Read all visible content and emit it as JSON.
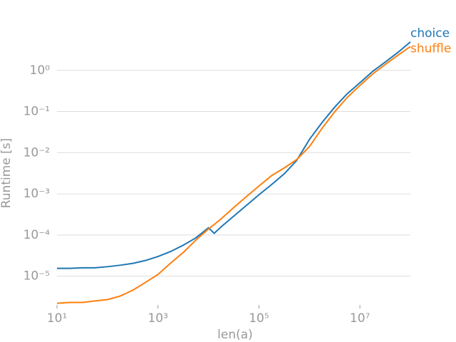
{
  "chart_data": {
    "type": "line",
    "xlabel": "len(a)",
    "ylabel": "Runtime [s]",
    "xscale": "log",
    "yscale": "log",
    "grid": true,
    "x": [
      10,
      18,
      32,
      56,
      100,
      180,
      320,
      560,
      1000,
      1800,
      3200,
      5600,
      10000,
      13000,
      18000,
      32000,
      56000,
      100000,
      180000,
      320000,
      560000,
      1000000,
      1800000,
      3200000,
      5600000,
      10000000,
      18000000,
      32000000,
      56000000,
      100000000
    ],
    "series": [
      {
        "name": "choice",
        "color": "#1f77b4",
        "values": [
          1.55e-05,
          1.55e-05,
          1.6e-05,
          1.6e-05,
          1.7e-05,
          1.85e-05,
          2.05e-05,
          2.4e-05,
          3e-05,
          4e-05,
          5.7e-05,
          8.5e-05,
          0.00015,
          0.00011,
          0.00016,
          0.00029,
          0.00052,
          0.00095,
          0.0017,
          0.0031,
          0.0065,
          0.021,
          0.055,
          0.13,
          0.27,
          0.5,
          0.95,
          1.6,
          2.7,
          4.9
        ]
      },
      {
        "name": "shuffle",
        "color": "#ff7f0e",
        "values": [
          2.2e-06,
          2.3e-06,
          2.3e-06,
          2.5e-06,
          2.7e-06,
          3.3e-06,
          4.6e-06,
          7e-06,
          1.1e-05,
          2.1e-05,
          3.8e-05,
          7.5e-05,
          0.00014,
          0.00018,
          0.00025,
          0.00047,
          0.00085,
          0.00155,
          0.0028,
          0.0043,
          0.0068,
          0.014,
          0.04,
          0.1,
          0.22,
          0.43,
          0.82,
          1.4,
          2.3,
          3.8
        ]
      }
    ],
    "xlim": [
      10,
      100000000
    ],
    "ylim": [
      2e-06,
      10
    ],
    "xticks": [
      {
        "value": 10,
        "label": "10¹"
      },
      {
        "value": 1000,
        "label": "10³"
      },
      {
        "value": 100000,
        "label": "10⁵"
      },
      {
        "value": 10000000,
        "label": "10⁷"
      }
    ],
    "yticks": [
      {
        "value": 1e-05,
        "label": "10⁻⁵"
      },
      {
        "value": 0.0001,
        "label": "10⁻⁴"
      },
      {
        "value": 0.001,
        "label": "10⁻³"
      },
      {
        "value": 0.01,
        "label": "10⁻²"
      },
      {
        "value": 0.1,
        "label": "10⁻¹"
      },
      {
        "value": 1,
        "label": "10⁰"
      }
    ]
  }
}
